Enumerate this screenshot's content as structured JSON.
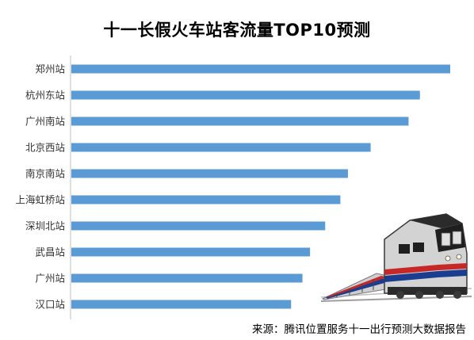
{
  "chart_data": {
    "type": "bar",
    "orientation": "horizontal",
    "title": "十一长假火车站客流量TOP10预测",
    "categories": [
      "郑州站",
      "杭州东站",
      "广州南站",
      "北京西站",
      "南京南站",
      "上海虹桥站",
      "深圳北站",
      "武昌站",
      "广州站",
      "汉口站"
    ],
    "series": [
      {
        "values": [
          100,
          92,
          89,
          79,
          73,
          71,
          67,
          63,
          61,
          58
        ]
      }
    ],
    "xlim": [
      0,
      100
    ],
    "xticks_shown": false,
    "grid": false,
    "legend": "none",
    "bar_color": "#5b9bd5",
    "axis_color": "#bfbfbf"
  },
  "source_note": "来源：腾讯位置服务十一出行预测大数据报告",
  "illustration": {
    "icon": "train-icon",
    "colors": [
      "#1f1f1f",
      "#c0c0c0",
      "#c62828",
      "#1a3d8f"
    ]
  }
}
